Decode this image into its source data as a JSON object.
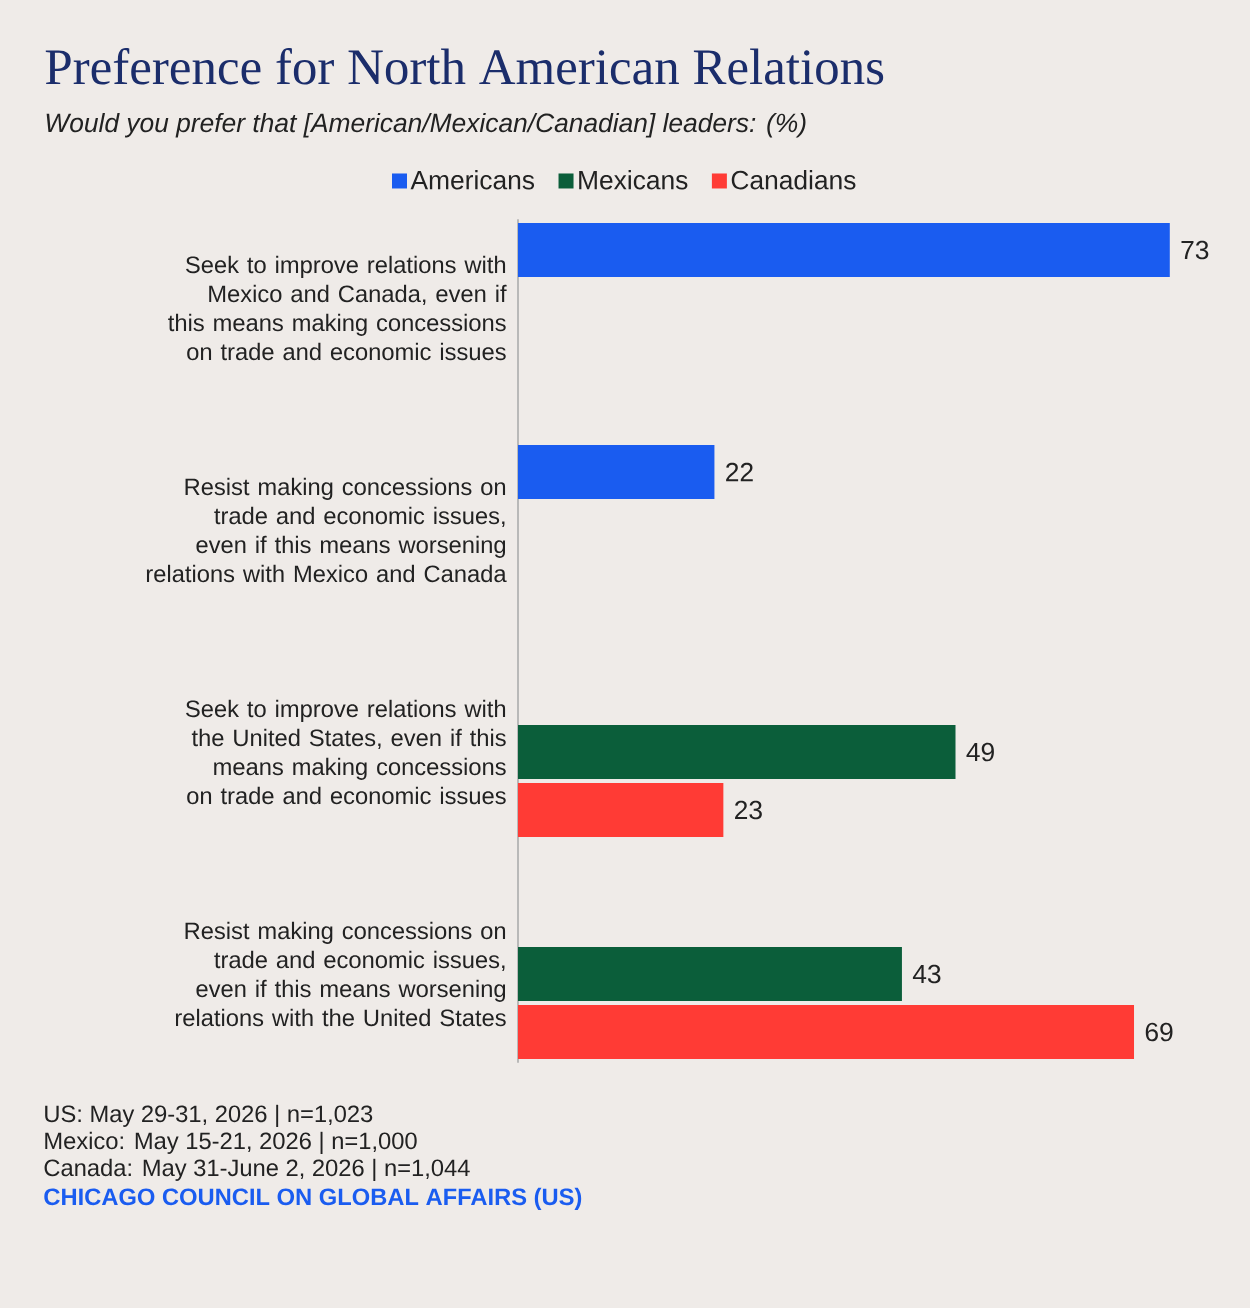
{
  "chart_data": {
    "type": "bar",
    "orientation": "horizontal",
    "title": "Preference for North American Relations",
    "subtitle": "Would you prefer that [American/Mexican/Canadian] leaders: (%)",
    "categories": [
      "Seek to improve relations with Mexico and Canada, even if this means making concessions on trade and economic issues",
      "Resist making concessions on trade and economic issues, even if this means worsening relations with Mexico and Canada",
      "Seek to improve relations with the United States, even if this means making concessions on trade and economic issues",
      "Resist making concessions on trade and economic issues, even if this means worsening relations with the United States"
    ],
    "series": [
      {
        "name": "Americans",
        "color": "#1a5cf0",
        "values": [
          73,
          22,
          null,
          null
        ]
      },
      {
        "name": "Mexicans",
        "color": "#0b5e3a",
        "values": [
          null,
          null,
          49,
          43
        ]
      },
      {
        "name": "Canadians",
        "color": "#ff3b35",
        "values": [
          null,
          null,
          23,
          69
        ]
      }
    ],
    "data_labels": true,
    "legend": "top",
    "annotations": [
      "US: May 29-31, 2026 | n=1,023",
      "Mexico: May 15-21, 2026 | n=1,000",
      "Canada: May 31-June 2, 2026 | n=1,044",
      "CHICAGO COUNCIL ON GLOBAL AFFAIRS (US)"
    ]
  }
}
